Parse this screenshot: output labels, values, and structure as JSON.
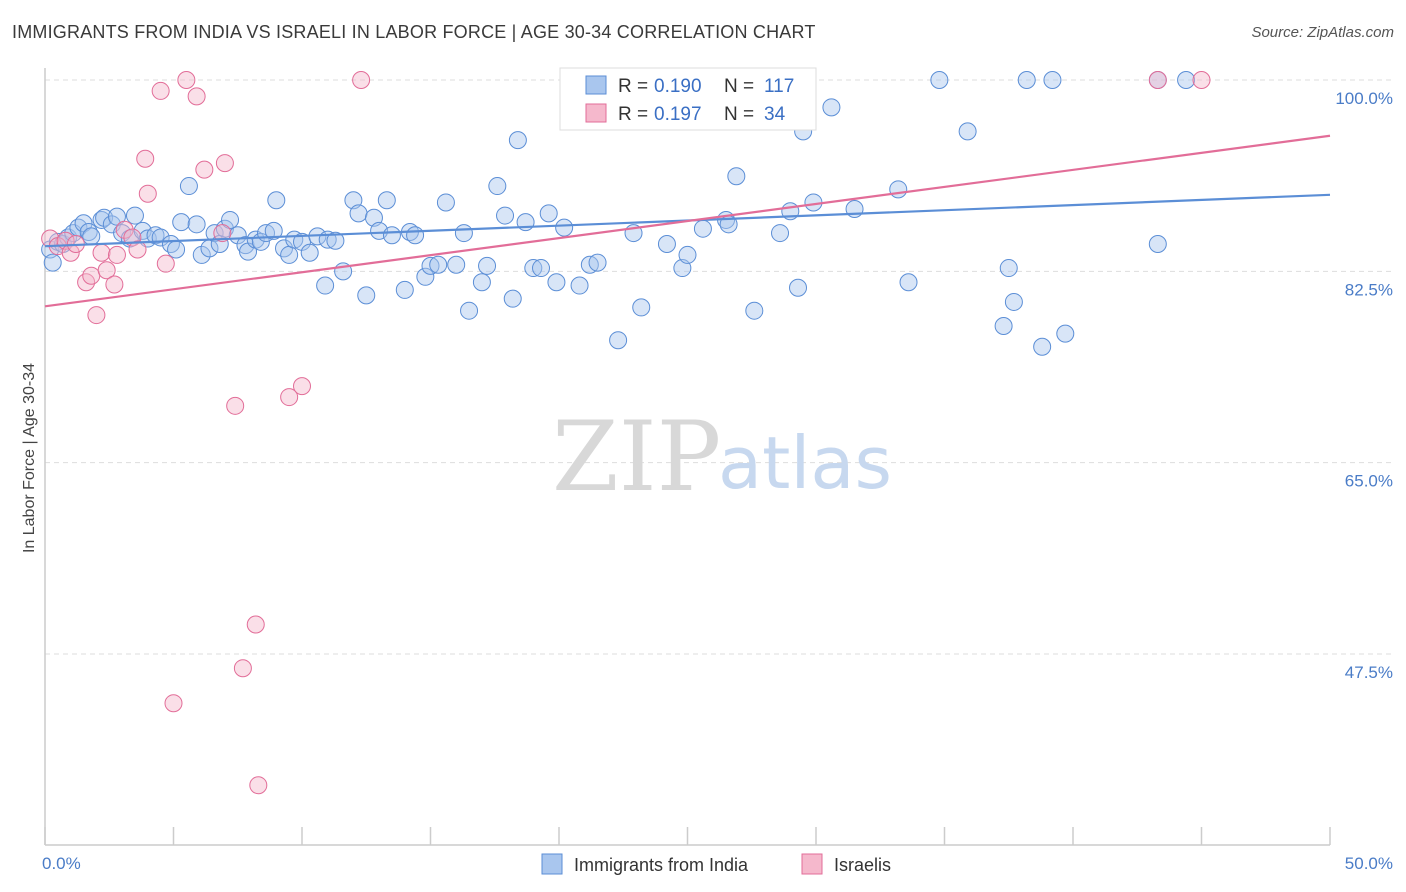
{
  "title": "IMMIGRANTS FROM INDIA VS ISRAELI IN LABOR FORCE | AGE 30-34 CORRELATION CHART",
  "source": "Source: ZipAtlas.com",
  "colors": {
    "blue": "#5b8ed6",
    "blue_fill": "#a9c6ee",
    "pink": "#e26d98",
    "pink_fill": "#f5b8cc",
    "axis_label": "#4a7cc7"
  },
  "chart_data": {
    "type": "scatter",
    "title": "IMMIGRANTS FROM INDIA VS ISRAELI IN LABOR FORCE | AGE 30-34 CORRELATION CHART",
    "xlabel": "",
    "ylabel": "In Labor Force | Age 30-34",
    "xlim": [
      0,
      50
    ],
    "ylim": [
      32,
      102
    ],
    "x_tick_labels": [
      "0.0%",
      "50.0%"
    ],
    "y_ticks": [
      47.5,
      65.0,
      82.5,
      100.0
    ],
    "y_tick_labels": [
      "47.5%",
      "65.0%",
      "82.5%",
      "100.0%"
    ],
    "grid": true,
    "legend": {
      "placement": "top-center",
      "entries": [
        {
          "r_label": "R =",
          "r_value": "0.190",
          "n_label": "N =",
          "n_value": "117"
        },
        {
          "r_label": "R =",
          "r_value": "0.197",
          "n_label": "N =",
          "n_value": "34"
        }
      ]
    },
    "series": [
      {
        "name": "Immigrants from India",
        "color": "#5b8ed6",
        "trend": [
          [
            0,
            84.8
          ],
          [
            50,
            89.5
          ]
        ],
        "points": [
          [
            0.2,
            84.5
          ],
          [
            0.3,
            83.3
          ],
          [
            0.5,
            85.2
          ],
          [
            0.7,
            85.0
          ],
          [
            0.9,
            85.6
          ],
          [
            1.1,
            86.0
          ],
          [
            1.3,
            86.5
          ],
          [
            1.5,
            86.9
          ],
          [
            1.7,
            86.1
          ],
          [
            1.8,
            85.7
          ],
          [
            2.2,
            87.2
          ],
          [
            2.3,
            87.4
          ],
          [
            2.6,
            86.8
          ],
          [
            2.8,
            87.5
          ],
          [
            3.0,
            86.0
          ],
          [
            3.3,
            85.5
          ],
          [
            3.5,
            87.6
          ],
          [
            3.8,
            86.2
          ],
          [
            4.0,
            85.5
          ],
          [
            4.3,
            85.8
          ],
          [
            4.5,
            85.6
          ],
          [
            4.9,
            85.0
          ],
          [
            5.1,
            84.5
          ],
          [
            5.3,
            87.0
          ],
          [
            5.6,
            90.3
          ],
          [
            5.9,
            86.8
          ],
          [
            6.1,
            84.0
          ],
          [
            6.4,
            84.6
          ],
          [
            6.6,
            86.0
          ],
          [
            6.8,
            85.0
          ],
          [
            7.0,
            86.4
          ],
          [
            7.2,
            87.2
          ],
          [
            7.5,
            85.8
          ],
          [
            7.8,
            84.9
          ],
          [
            7.9,
            84.3
          ],
          [
            8.2,
            85.4
          ],
          [
            8.4,
            85.2
          ],
          [
            8.6,
            86.0
          ],
          [
            8.9,
            86.2
          ],
          [
            9.0,
            89.0
          ],
          [
            9.3,
            84.6
          ],
          [
            9.5,
            84.0
          ],
          [
            9.7,
            85.4
          ],
          [
            10.0,
            85.2
          ],
          [
            10.3,
            84.2
          ],
          [
            10.6,
            85.7
          ],
          [
            10.9,
            81.2
          ],
          [
            11.0,
            85.4
          ],
          [
            11.3,
            85.3
          ],
          [
            11.6,
            82.5
          ],
          [
            12.0,
            89.0
          ],
          [
            12.2,
            87.8
          ],
          [
            12.5,
            80.3
          ],
          [
            12.8,
            87.4
          ],
          [
            13.0,
            86.2
          ],
          [
            13.3,
            89.0
          ],
          [
            13.5,
            85.8
          ],
          [
            14.0,
            80.8
          ],
          [
            14.2,
            86.1
          ],
          [
            14.4,
            85.8
          ],
          [
            14.8,
            82.0
          ],
          [
            15.0,
            83.0
          ],
          [
            15.3,
            83.1
          ],
          [
            15.6,
            88.8
          ],
          [
            16.0,
            83.1
          ],
          [
            16.3,
            86.0
          ],
          [
            16.5,
            78.9
          ],
          [
            17.0,
            81.5
          ],
          [
            17.2,
            83.0
          ],
          [
            17.6,
            90.3
          ],
          [
            17.9,
            87.6
          ],
          [
            18.2,
            80.0
          ],
          [
            18.4,
            94.5
          ],
          [
            18.7,
            87.0
          ],
          [
            19.0,
            82.8
          ],
          [
            19.3,
            82.8
          ],
          [
            19.6,
            87.8
          ],
          [
            19.9,
            81.5
          ],
          [
            20.2,
            86.5
          ],
          [
            20.8,
            81.2
          ],
          [
            21.2,
            83.1
          ],
          [
            21.5,
            83.3
          ],
          [
            21.8,
            100.0
          ],
          [
            22.3,
            76.2
          ],
          [
            22.9,
            86.0
          ],
          [
            23.2,
            79.2
          ],
          [
            23.8,
            100.0
          ],
          [
            24.2,
            85.0
          ],
          [
            24.8,
            82.8
          ],
          [
            25.0,
            84.0
          ],
          [
            25.6,
            86.4
          ],
          [
            26.5,
            87.2
          ],
          [
            26.6,
            86.8
          ],
          [
            26.9,
            91.2
          ],
          [
            27.6,
            78.9
          ],
          [
            28.0,
            100.0
          ],
          [
            28.6,
            86.0
          ],
          [
            29.0,
            88.0
          ],
          [
            29.3,
            81.0
          ],
          [
            29.5,
            95.3
          ],
          [
            29.9,
            88.8
          ],
          [
            30.6,
            97.5
          ],
          [
            31.5,
            88.2
          ],
          [
            33.2,
            90.0
          ],
          [
            33.6,
            81.5
          ],
          [
            34.8,
            100.0
          ],
          [
            35.9,
            95.3
          ],
          [
            37.3,
            77.5
          ],
          [
            37.5,
            82.8
          ],
          [
            37.7,
            79.7
          ],
          [
            38.2,
            100.0
          ],
          [
            38.8,
            75.6
          ],
          [
            39.2,
            100.0
          ],
          [
            39.7,
            76.8
          ],
          [
            43.3,
            100.0
          ],
          [
            43.3,
            85.0
          ],
          [
            44.4,
            100.0
          ]
        ],
        "sizes_note": "typical"
      },
      {
        "name": "Israelis",
        "color": "#e26d98",
        "trend": [
          [
            0,
            79.3
          ],
          [
            50,
            94.9
          ]
        ],
        "points": [
          [
            0.2,
            85.5
          ],
          [
            0.5,
            84.8
          ],
          [
            0.8,
            85.3
          ],
          [
            1.0,
            84.2
          ],
          [
            1.2,
            85.0
          ],
          [
            1.6,
            81.5
          ],
          [
            1.8,
            82.1
          ],
          [
            2.0,
            78.5
          ],
          [
            2.2,
            84.2
          ],
          [
            2.4,
            82.6
          ],
          [
            2.7,
            81.3
          ],
          [
            2.8,
            84.0
          ],
          [
            3.1,
            86.3
          ],
          [
            3.4,
            85.6
          ],
          [
            3.6,
            84.5
          ],
          [
            3.9,
            92.8
          ],
          [
            4.0,
            89.6
          ],
          [
            4.5,
            99.0
          ],
          [
            4.7,
            83.2
          ],
          [
            5.0,
            43.0
          ],
          [
            5.5,
            100.0
          ],
          [
            5.9,
            98.5
          ],
          [
            6.2,
            91.8
          ],
          [
            6.9,
            86.0
          ],
          [
            7.0,
            92.4
          ],
          [
            7.4,
            70.2
          ],
          [
            7.7,
            46.2
          ],
          [
            8.2,
            50.2
          ],
          [
            8.3,
            35.5
          ],
          [
            9.5,
            71.0
          ],
          [
            10.0,
            72.0
          ],
          [
            12.3,
            100.0
          ],
          [
            43.3,
            100.0
          ],
          [
            45.0,
            100.0
          ]
        ]
      }
    ],
    "bottom_legend": [
      "Immigrants from India",
      "Israelis"
    ]
  }
}
